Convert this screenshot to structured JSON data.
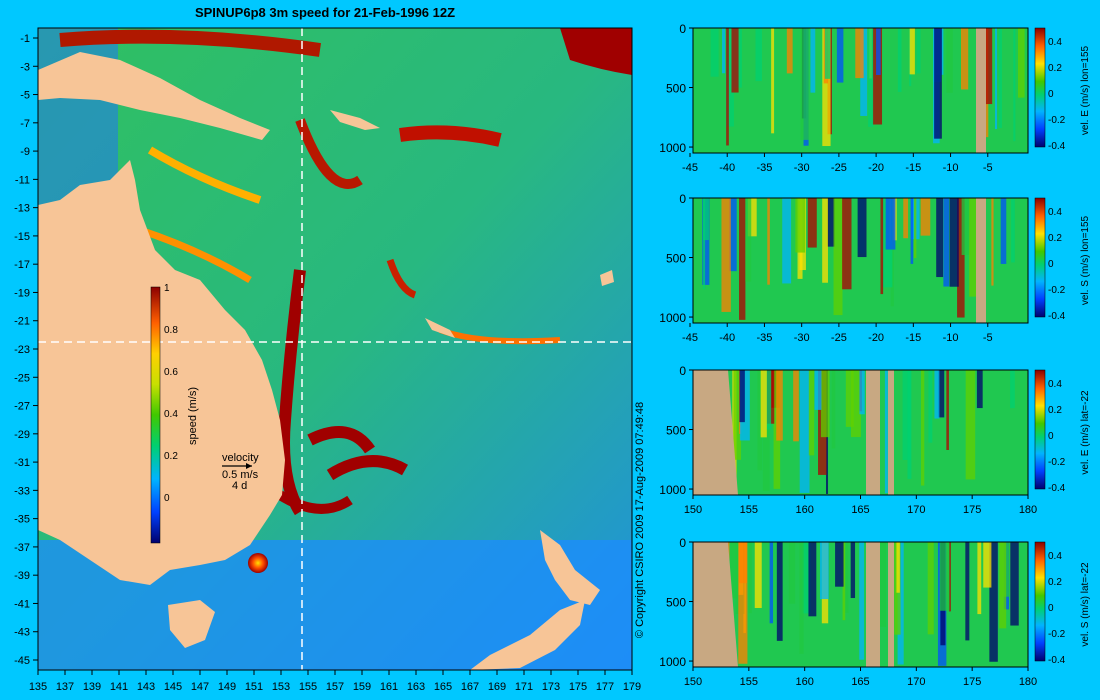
{
  "title": "SPINUP6p8 3m speed for 21-Feb-1996 12Z",
  "copyright": "© Copyright CSIRO 2009   17-Aug-2009 07:49:48",
  "colors": {
    "background": "#00c8ff",
    "land": "#f7c597",
    "section_land": "#c8a882",
    "crosshair": "#ffffff"
  },
  "map": {
    "x_ticks": [
      "135",
      "137",
      "139",
      "141",
      "143",
      "145",
      "147",
      "149",
      "151",
      "153",
      "155",
      "157",
      "159",
      "161",
      "163",
      "165",
      "167",
      "169",
      "171",
      "173",
      "175",
      "177",
      "179"
    ],
    "y_ticks": [
      "-1",
      "-3",
      "-5",
      "-7",
      "-9",
      "-11",
      "-13",
      "-15",
      "-17",
      "-19",
      "-21",
      "-23",
      "-25",
      "-27",
      "-29",
      "-31",
      "-33",
      "-35",
      "-37",
      "-39",
      "-41",
      "-43",
      "-45"
    ],
    "colorbar": {
      "label": "speed (m/s)",
      "ticks": [
        "1",
        "0.8",
        "0.6",
        "0.4",
        "0.2",
        "0"
      ]
    },
    "velocity_key": {
      "line1": "velocity",
      "line2": "0.5 m/s",
      "line3": "4 d"
    }
  },
  "panels": [
    {
      "cb_label": "vel. E (m/s) lon=155",
      "x_ticks": [
        "-45",
        "-40",
        "-35",
        "-30",
        "-25",
        "-20",
        "-15",
        "-10",
        "-5"
      ],
      "y_ticks": [
        "0",
        "500",
        "1000"
      ],
      "cb_ticks": [
        "0.4",
        "0.2",
        "0",
        "-0.2",
        "-0.4"
      ]
    },
    {
      "cb_label": "vel. S (m/s) lon=155",
      "x_ticks": [
        "-45",
        "-40",
        "-35",
        "-30",
        "-25",
        "-20",
        "-15",
        "-10",
        "-5"
      ],
      "y_ticks": [
        "0",
        "500",
        "1000"
      ],
      "cb_ticks": [
        "0.4",
        "0.2",
        "0",
        "-0.2",
        "-0.4"
      ]
    },
    {
      "cb_label": "vel. E (m/s) lat=-22",
      "x_ticks": [
        "150",
        "155",
        "160",
        "165",
        "170",
        "175",
        "180"
      ],
      "y_ticks": [
        "0",
        "500",
        "1000"
      ],
      "cb_ticks": [
        "0.4",
        "0.2",
        "0",
        "-0.2",
        "-0.4"
      ]
    },
    {
      "cb_label": "vel. S (m/s) lat=-22",
      "x_ticks": [
        "150",
        "155",
        "160",
        "165",
        "170",
        "175",
        "180"
      ],
      "y_ticks": [
        "0",
        "500",
        "1000"
      ],
      "cb_ticks": [
        "0.4",
        "0.2",
        "0",
        "-0.2",
        "-0.4"
      ]
    }
  ],
  "chart_data": [
    {
      "type": "heatmap",
      "title": "SPINUP6p8 3m speed for 21-Feb-1996 12Z",
      "xlim": [
        135,
        180
      ],
      "ylim": [
        -45,
        0
      ],
      "colorbar_label": "speed (m/s)",
      "clim": [
        0,
        1
      ]
    },
    {
      "type": "heatmap",
      "colorbar_label": "vel. E (m/s) lon=155",
      "xlim": [
        -45,
        0
      ],
      "ylim": [
        1050,
        0
      ],
      "clim": [
        -0.4,
        0.5
      ]
    },
    {
      "type": "heatmap",
      "colorbar_label": "vel. S (m/s) lon=155",
      "xlim": [
        -45,
        0
      ],
      "ylim": [
        1050,
        0
      ],
      "clim": [
        -0.4,
        0.5
      ]
    },
    {
      "type": "heatmap",
      "colorbar_label": "vel. E (m/s) lat=-22",
      "xlim": [
        150,
        180
      ],
      "ylim": [
        1050,
        0
      ],
      "clim": [
        -0.4,
        0.5
      ]
    },
    {
      "type": "heatmap",
      "colorbar_label": "vel. S (m/s) lat=-22",
      "xlim": [
        150,
        180
      ],
      "ylim": [
        1050,
        0
      ],
      "clim": [
        -0.4,
        0.5
      ]
    }
  ]
}
